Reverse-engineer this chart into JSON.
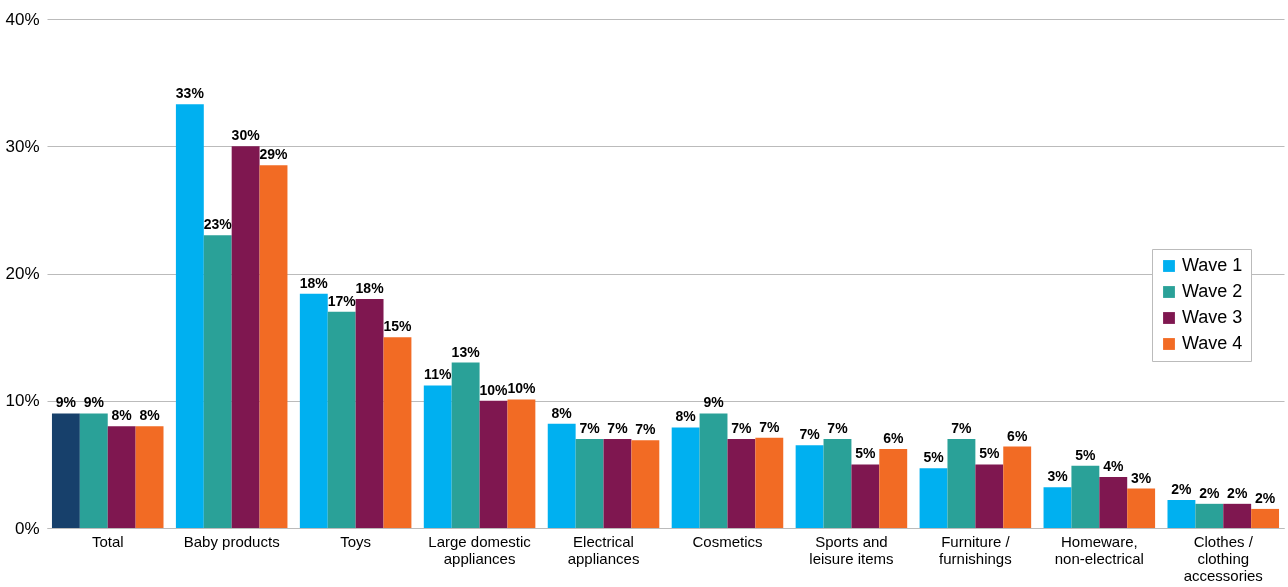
{
  "chart_data": {
    "type": "bar",
    "categories": [
      "Total",
      "Baby products",
      "Toys",
      "Large domestic appliances",
      "Electrical appliances",
      "Cosmetics",
      "Sports and leisure items",
      "Furniture / furnishings",
      "Homeware, non-electrical",
      "Clothes / clothing accessories"
    ],
    "series": [
      {
        "name": "Wave 1",
        "color": "#00b0f0",
        "colors": [
          "#17406b",
          "#00b0f0",
          "#00b0f0",
          "#00b0f0",
          "#00b0f0",
          "#00b0f0",
          "#00b0f0",
          "#00b0f0",
          "#00b0f0",
          "#00b0f0"
        ],
        "values": [
          9,
          33.3,
          18.4,
          11.2,
          8.2,
          7.9,
          6.5,
          4.7,
          3.2,
          2.2
        ],
        "value_labels": [
          "9%",
          "33%",
          "18%",
          "11%",
          "8%",
          "8%",
          "7%",
          "5%",
          "3%",
          "2%"
        ]
      },
      {
        "name": "Wave 2",
        "color": "#2aa198",
        "values": [
          9,
          23,
          17,
          13,
          7,
          9,
          7,
          7,
          4.9,
          1.9
        ],
        "value_labels": [
          "9%",
          "23%",
          "17%",
          "13%",
          "7%",
          "9%",
          "7%",
          "7%",
          "5%",
          "2%"
        ]
      },
      {
        "name": "Wave 3",
        "color": "#7f1750",
        "values": [
          8,
          30,
          18,
          10,
          7,
          7,
          5,
          5,
          4,
          1.9
        ],
        "value_labels": [
          "8%",
          "30%",
          "18%",
          "10%",
          "7%",
          "7%",
          "5%",
          "5%",
          "4%",
          "2%"
        ]
      },
      {
        "name": "Wave 4",
        "color": "#f26b24",
        "values": [
          8,
          28.5,
          15,
          10.1,
          6.9,
          7.1,
          6.2,
          6.4,
          3.1,
          1.5
        ],
        "value_labels": [
          "8%",
          "29%",
          "15%",
          "10%",
          "7%",
          "7%",
          "6%",
          "6%",
          "3%",
          "2%"
        ]
      }
    ],
    "ylim": [
      0,
      40
    ],
    "yticks": [
      {
        "value": 0,
        "label": "0%"
      },
      {
        "value": 10,
        "label": "10%"
      },
      {
        "value": 20,
        "label": "20%"
      },
      {
        "value": 30,
        "label": "30%"
      },
      {
        "value": 40,
        "label": "40%"
      }
    ],
    "grid": "y",
    "legend": "right"
  }
}
